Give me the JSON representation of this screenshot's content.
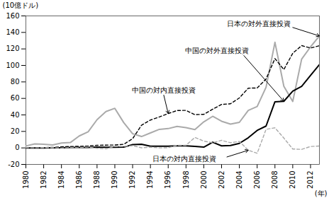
{
  "chart_data": {
    "type": "line",
    "x": [
      1980,
      1981,
      1982,
      1983,
      1984,
      1985,
      1986,
      1987,
      1988,
      1989,
      1990,
      1991,
      1992,
      1993,
      1994,
      1995,
      1996,
      1997,
      1998,
      1999,
      2000,
      2001,
      2002,
      2003,
      2004,
      2005,
      2006,
      2007,
      2008,
      2009,
      2010,
      2011,
      2012,
      2013
    ],
    "series": [
      {
        "name": "日本の対外直接投資",
        "color": "#aaaaaa",
        "line_style": "solid",
        "values": [
          2.4,
          4.9,
          4.5,
          3.6,
          6.0,
          6.5,
          14.5,
          19.5,
          34.2,
          44.1,
          48.0,
          30.7,
          17.2,
          13.8,
          18.1,
          22.5,
          23.4,
          26.1,
          24.6,
          22.3,
          31.6,
          38.3,
          32.3,
          28.8,
          31.0,
          45.5,
          50.2,
          73.5,
          128.0,
          74.7,
          56.3,
          107.6,
          122.5,
          135.7
        ]
      },
      {
        "name": "中国の対外直接投資",
        "color": "#000000",
        "line_style": "solid",
        "values": [
          0,
          0,
          0,
          0.1,
          0.1,
          0.6,
          0.5,
          0.6,
          0.9,
          0.8,
          0.8,
          0.9,
          4.0,
          4.4,
          2.0,
          2.0,
          2.1,
          2.6,
          2.6,
          1.8,
          0.9,
          6.9,
          2.5,
          2.9,
          5.5,
          12.3,
          21.2,
          26.5,
          55.9,
          56.5,
          68.8,
          74.7,
          87.8,
          101.0
        ]
      },
      {
        "name": "中国の対内直接投資",
        "color": "#000000",
        "line_style": "dashed",
        "values": [
          0.1,
          0.3,
          0.4,
          0.6,
          1.3,
          1.7,
          1.9,
          2.3,
          3.2,
          3.4,
          3.5,
          4.4,
          11.2,
          27.5,
          33.8,
          37.5,
          41.7,
          45.3,
          45.5,
          40.3,
          40.7,
          46.9,
          52.7,
          53.5,
          60.6,
          72.4,
          72.7,
          83.5,
          108.3,
          95.0,
          114.7,
          124.0,
          121.1,
          123.9
        ]
      },
      {
        "name": "日本の対内直接投資",
        "color": "#aaaaaa",
        "line_style": "dashed",
        "values": [
          0.3,
          0.2,
          0.4,
          0.4,
          0,
          0.6,
          0.2,
          1.2,
          -0.5,
          -1.1,
          1.8,
          1.7,
          2.8,
          0.1,
          0.9,
          0.0,
          0.2,
          3.2,
          3.2,
          12.7,
          8.3,
          6.2,
          9.2,
          6.3,
          7.8,
          -2.8,
          -6.5,
          22.5,
          24.4,
          11.9,
          -1.3,
          -1.8,
          1.7,
          2.3
        ]
      }
    ],
    "x_label": "(年)",
    "y_label": "(10億ドル)",
    "xlim": [
      1980,
      2013
    ],
    "xticks": [
      1980,
      1982,
      1984,
      1986,
      1988,
      1990,
      1992,
      1994,
      1996,
      1998,
      2000,
      2002,
      2004,
      2006,
      2008,
      2010,
      2012
    ],
    "ylim": [
      -20,
      160
    ],
    "yticks": [
      -20,
      0,
      20,
      40,
      60,
      80,
      100,
      120,
      140,
      160
    ],
    "grid": false
  }
}
